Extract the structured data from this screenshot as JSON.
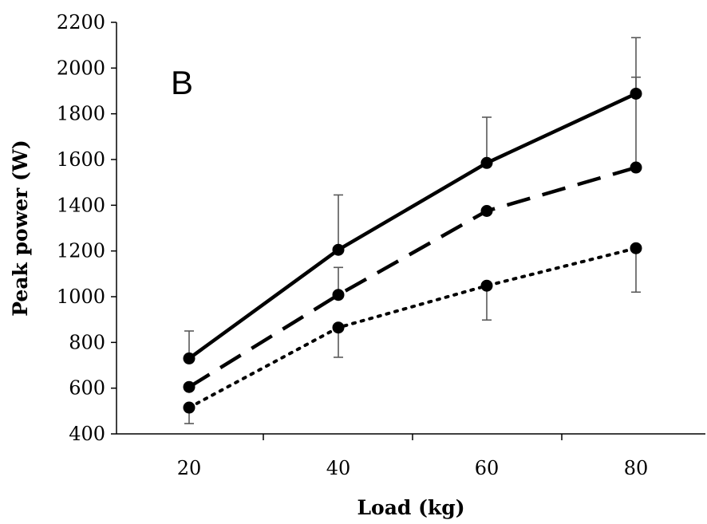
{
  "chart_data": {
    "type": "line",
    "title": "",
    "panel_label": "B",
    "xlabel": "Load (kg)",
    "ylabel": "Peak power (W)",
    "categories": [
      "20",
      "40",
      "60",
      "80"
    ],
    "ylim": [
      400,
      2200
    ],
    "yticks": [
      "400",
      "600",
      "800",
      "1000",
      "1200",
      "1400",
      "1600",
      "1800",
      "2000",
      "2200"
    ],
    "grid": false,
    "legend": "none",
    "series": [
      {
        "line_style": "solid",
        "values": [
          730,
          1205,
          1585,
          1888
        ],
        "error_plus": [
          120,
          240,
          200,
          245
        ],
        "error_minus": [
          0,
          0,
          0,
          0
        ]
      },
      {
        "line_style": "dashed",
        "values": [
          605,
          1008,
          1375,
          1565
        ],
        "error_plus": [
          0,
          120,
          0,
          395
        ],
        "error_minus": [
          0,
          0,
          0,
          0
        ]
      },
      {
        "line_style": "dotted",
        "values": [
          515,
          865,
          1048,
          1212
        ],
        "error_plus": [
          0,
          0,
          0,
          0
        ],
        "error_minus": [
          70,
          130,
          150,
          192
        ]
      }
    ],
    "colors": {
      "line": "#000000",
      "error_bar": "#595959"
    }
  }
}
